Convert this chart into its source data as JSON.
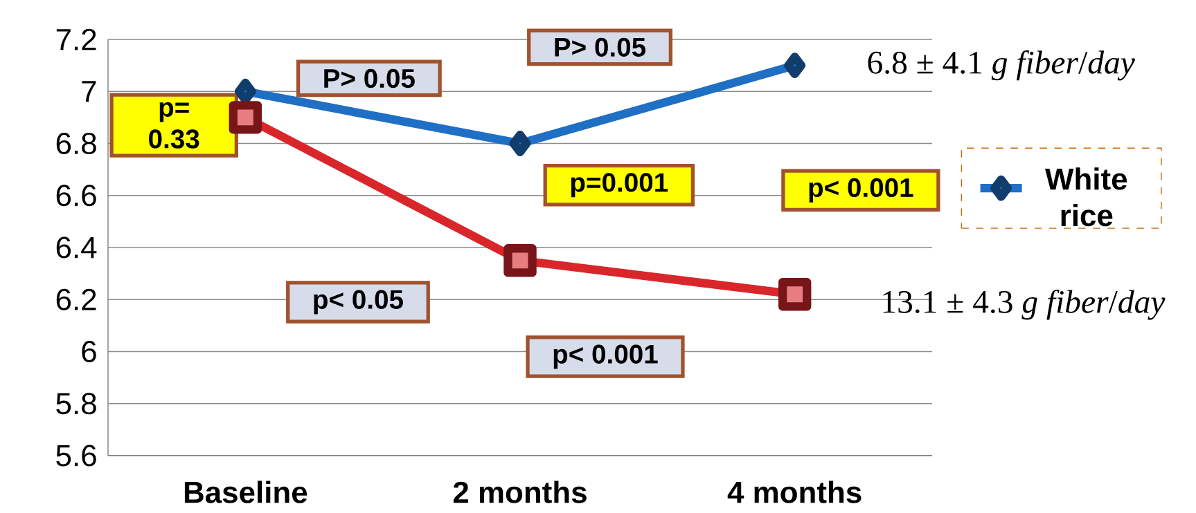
{
  "chart_data": {
    "type": "line",
    "categories": [
      "Baseline",
      "2 months",
      "4 months"
    ],
    "series": [
      {
        "name": "White rice",
        "color": "#1f6fc5",
        "marker": "diamond",
        "values": [
          7.0,
          6.8,
          7.1
        ]
      },
      {
        "color": "#d9262b",
        "marker": "square",
        "values": [
          6.9,
          6.35,
          6.22
        ]
      }
    ],
    "ylim": [
      5.6,
      7.2
    ],
    "yticks": [
      5.6,
      5.8,
      6,
      6.2,
      6.4,
      6.6,
      6.8,
      7,
      7.2
    ],
    "grid": "y",
    "legend": "right",
    "annotations": [
      "p= 0.33",
      "P> 0.05",
      "P> 0.05",
      "p=0.001",
      "p< 0.001",
      "p< 0.05",
      "p< 0.001",
      "6.8 ± 4.1 *g fiber*/*day*",
      "13.1 ± 4.3 *g fiber*/*day*"
    ]
  }
}
